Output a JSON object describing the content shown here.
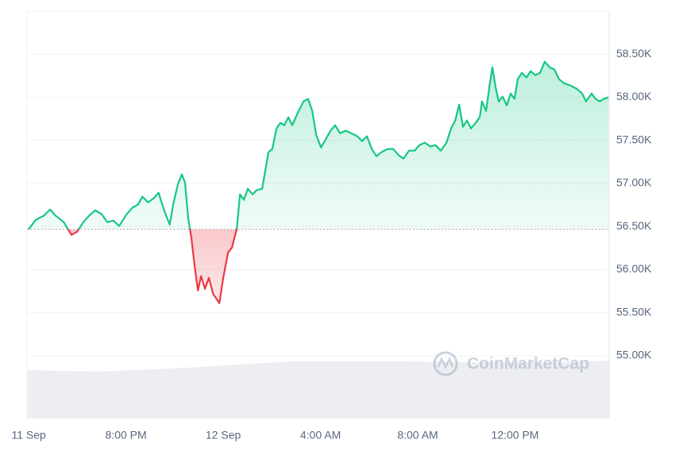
{
  "chart_data": {
    "type": "baseline-line",
    "watermark": "CoinMarketCap",
    "x": [
      0,
      0.29,
      0.62,
      0.88,
      1.11,
      1.44,
      1.76,
      1.99,
      2.25,
      2.48,
      2.74,
      3.0,
      3.23,
      3.49,
      3.72,
      4.03,
      4.26,
      4.49,
      4.68,
      4.91,
      5.14,
      5.34,
      5.57,
      5.8,
      5.94,
      6.14,
      6.3,
      6.43,
      6.56,
      6.69,
      6.82,
      6.96,
      7.09,
      7.25,
      7.41,
      7.58,
      7.84,
      8.0,
      8.2,
      8.36,
      8.56,
      8.69,
      8.85,
      9.01,
      9.21,
      9.37,
      9.6,
      9.86,
      10.02,
      10.19,
      10.35,
      10.51,
      10.68,
      10.84,
      11.07,
      11.3,
      11.49,
      11.66,
      11.82,
      12.02,
      12.21,
      12.41,
      12.6,
      12.8,
      13.03,
      13.26,
      13.52,
      13.71,
      13.91,
      14.11,
      14.3,
      14.5,
      14.76,
      14.99,
      15.22,
      15.41,
      15.64,
      15.87,
      16.07,
      16.29,
      16.52,
      16.72,
      16.95,
      17.18,
      17.37,
      17.54,
      17.7,
      17.86,
      18.02,
      18.19,
      18.38,
      18.55,
      18.64,
      18.81,
      18.94,
      19.07,
      19.2,
      19.33,
      19.49,
      19.66,
      19.82,
      19.98,
      20.11,
      20.28,
      20.47,
      20.64,
      20.83,
      21.03,
      21.22,
      21.42,
      21.62,
      21.81,
      22.01,
      22.27,
      22.53,
      22.76,
      22.92,
      23.15,
      23.31,
      23.48,
      23.64,
      23.84
    ],
    "values": [
      56467,
      56577,
      56624,
      56697,
      56624,
      56550,
      56402,
      56439,
      56550,
      56624,
      56688,
      56642,
      56550,
      56568,
      56504,
      56642,
      56716,
      56753,
      56845,
      56780,
      56827,
      56891,
      56688,
      56522,
      56753,
      56993,
      57103,
      57011,
      56596,
      56365,
      56042,
      55756,
      55922,
      55775,
      55904,
      55720,
      55609,
      55904,
      56199,
      56254,
      56476,
      56873,
      56808,
      56937,
      56873,
      56919,
      56937,
      57362,
      57399,
      57638,
      57703,
      57675,
      57768,
      57675,
      57823,
      57952,
      57980,
      57841,
      57565,
      57417,
      57509,
      57611,
      57675,
      57583,
      57611,
      57583,
      57546,
      57491,
      57546,
      57399,
      57315,
      57362,
      57399,
      57399,
      57325,
      57288,
      57380,
      57380,
      57445,
      57473,
      57427,
      57445,
      57380,
      57473,
      57638,
      57730,
      57915,
      57657,
      57730,
      57638,
      57703,
      57768,
      57952,
      57841,
      58118,
      58349,
      58118,
      57952,
      58007,
      57906,
      58044,
      57980,
      58210,
      58284,
      58229,
      58303,
      58257,
      58284,
      58413,
      58349,
      58321,
      58210,
      58164,
      58137,
      58100,
      58044,
      57952,
      58044,
      57980,
      57952,
      57980,
      57998
    ],
    "baseline": 56467,
    "color": "#16c784",
    "color_below": "#ea3943",
    "xlim": [
      -0.07,
      23.87
    ],
    "xticks": [
      {
        "value": 0,
        "label": "11 Sep"
      },
      {
        "value": 4,
        "label": "8:00 PM"
      },
      {
        "value": 8,
        "label": "12 Sep"
      },
      {
        "value": 12,
        "label": "4:00 AM"
      },
      {
        "value": 16,
        "label": "8:00 AM"
      },
      {
        "value": 20,
        "label": "12:00 PM"
      }
    ],
    "ylim": [
      54270,
      59000
    ],
    "yticks": [
      {
        "value": 55000,
        "label": "55.00K"
      },
      {
        "value": 55500,
        "label": "55.50K"
      },
      {
        "value": 56000,
        "label": "56.00K"
      },
      {
        "value": 56500,
        "label": "56.50K"
      },
      {
        "value": 57000,
        "label": "57.00K"
      },
      {
        "value": 57500,
        "label": "57.50K"
      },
      {
        "value": 58000,
        "label": "58.00K"
      },
      {
        "value": 58500,
        "label": "58.50K"
      }
    ],
    "grid": true
  }
}
